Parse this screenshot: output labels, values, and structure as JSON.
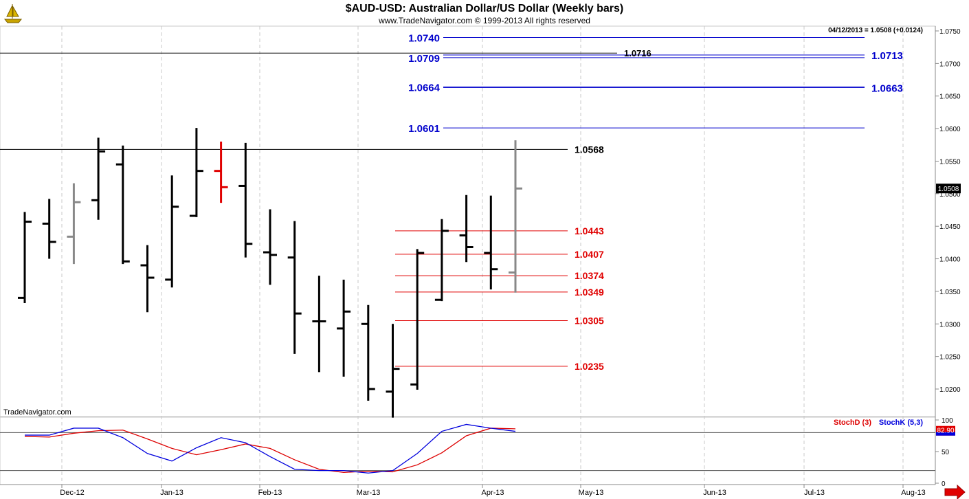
{
  "header": {
    "title": "$AUD-USD:  Australian Dollar/US Dollar  (Weekly bars)",
    "subtitle": "www.TradeNavigator.com © 1999-2013 All rights reserved",
    "quote": "04/12/2013 = 1.0508 (+0.0124)",
    "watermark": "TradeNavigator.com",
    "logo_icon": "trade-navigator-ship-logo"
  },
  "colors": {
    "up_bar": "#000000",
    "down_bar": "#000000",
    "highlight_bar": "#e00000",
    "current_bar": "#888888",
    "target_lines": "#0000cc",
    "support_lines": "#e00000",
    "resistance_lines": "#000000",
    "stoch_k": "#0000dd",
    "stoch_d": "#dd0000"
  },
  "chart_data": [
    {
      "type": "ohlc",
      "title": "$AUD-USD:  Australian Dollar/US Dollar  (Weekly bars)",
      "ylim": [
        1.0155,
        1.0755
      ],
      "y_ticks": [
        "1.0750",
        "1.0700",
        "1.0650",
        "1.0600",
        "1.0550",
        "1.0500",
        "1.0450",
        "1.0400",
        "1.0350",
        "1.0300",
        "1.0250",
        "1.0200"
      ],
      "x_ticks": [
        "Dec-12",
        "Jan-13",
        "Feb-13",
        "Mar-13",
        "Apr-13",
        "May-13",
        "Jun-13",
        "Jul-13",
        "Aug-13"
      ],
      "last_price_label": "1.0508",
      "bars": [
        {
          "o": 1.034,
          "h": 1.0472,
          "l": 1.0332,
          "c": 1.0457,
          "style": "normal"
        },
        {
          "o": 1.0454,
          "h": 1.0492,
          "l": 1.04,
          "c": 1.0426,
          "style": "normal"
        },
        {
          "o": 1.0434,
          "h": 1.0516,
          "l": 1.0392,
          "c": 1.0487,
          "style": "gray"
        },
        {
          "o": 1.049,
          "h": 1.0586,
          "l": 1.046,
          "c": 1.0565,
          "style": "normal"
        },
        {
          "o": 1.0545,
          "h": 1.0574,
          "l": 1.0392,
          "c": 1.0396,
          "style": "normal"
        },
        {
          "o": 1.039,
          "h": 1.0421,
          "l": 1.0318,
          "c": 1.0371,
          "style": "normal"
        },
        {
          "o": 1.0368,
          "h": 1.0528,
          "l": 1.0356,
          "c": 1.048,
          "style": "normal"
        },
        {
          "o": 1.0466,
          "h": 1.0601,
          "l": 1.0464,
          "c": 1.0535,
          "style": "normal"
        },
        {
          "o": 1.0535,
          "h": 1.058,
          "l": 1.0486,
          "c": 1.051,
          "style": "red"
        },
        {
          "o": 1.0512,
          "h": 1.0578,
          "l": 1.0402,
          "c": 1.0423,
          "style": "normal"
        },
        {
          "o": 1.041,
          "h": 1.0476,
          "l": 1.036,
          "c": 1.0406,
          "style": "normal"
        },
        {
          "o": 1.0402,
          "h": 1.0458,
          "l": 1.0254,
          "c": 1.0316,
          "style": "normal"
        },
        {
          "o": 1.0304,
          "h": 1.0374,
          "l": 1.0226,
          "c": 1.0304,
          "style": "normal"
        },
        {
          "o": 1.0293,
          "h": 1.0368,
          "l": 1.0219,
          "c": 1.0319,
          "style": "normal"
        },
        {
          "o": 1.03,
          "h": 1.0329,
          "l": 1.0182,
          "c": 1.02,
          "style": "normal"
        },
        {
          "o": 1.0196,
          "h": 1.03,
          "l": 1.0156,
          "c": 1.0231,
          "style": "normal"
        },
        {
          "o": 1.0207,
          "h": 1.0415,
          "l": 1.0199,
          "c": 1.0409,
          "style": "normal"
        },
        {
          "o": 1.0337,
          "h": 1.0461,
          "l": 1.0335,
          "c": 1.0443,
          "style": "normal"
        },
        {
          "o": 1.0436,
          "h": 1.0498,
          "l": 1.0395,
          "c": 1.0418,
          "style": "normal"
        },
        {
          "o": 1.0409,
          "h": 1.0497,
          "l": 1.0353,
          "c": 1.0384,
          "style": "normal"
        },
        {
          "o": 1.0379,
          "h": 1.0582,
          "l": 1.0348,
          "c": 1.0508,
          "style": "gray"
        }
      ],
      "levels": [
        {
          "value": 1.074,
          "label": "1.0740",
          "color": "blue",
          "side": "left"
        },
        {
          "value": 1.0713,
          "label": "1.0713",
          "color": "blue",
          "side": "right"
        },
        {
          "value": 1.0709,
          "label": "1.0709",
          "color": "blue",
          "side": "left"
        },
        {
          "value": 1.0716,
          "label": "1.0716",
          "color": "black",
          "side": "mid"
        },
        {
          "value": 1.0664,
          "label": "1.0664",
          "color": "blue",
          "side": "left"
        },
        {
          "value": 1.0663,
          "label": "1.0663",
          "color": "blue",
          "side": "right"
        },
        {
          "value": 1.0601,
          "label": "1.0601",
          "color": "blue",
          "side": "left"
        },
        {
          "value": 1.0568,
          "label": "1.0568",
          "color": "black",
          "side": "right"
        },
        {
          "value": 1.0443,
          "label": "1.0443",
          "color": "red",
          "side": "right"
        },
        {
          "value": 1.0407,
          "label": "1.0407",
          "color": "red",
          "side": "right"
        },
        {
          "value": 1.0374,
          "label": "1.0374",
          "color": "red",
          "side": "right"
        },
        {
          "value": 1.0349,
          "label": "1.0349",
          "color": "red",
          "side": "right"
        },
        {
          "value": 1.0305,
          "label": "1.0305",
          "color": "red",
          "side": "right"
        },
        {
          "value": 1.0235,
          "label": "1.0235",
          "color": "red",
          "side": "right"
        }
      ]
    },
    {
      "type": "line",
      "title": "Stochastic",
      "ylim": [
        0,
        100
      ],
      "y_ticks": [
        "100",
        "50",
        "0"
      ],
      "reference_levels": [
        80,
        20
      ],
      "value_label": "82.90",
      "series": [
        {
          "name": "StochD (3)",
          "values": [
            74,
            73,
            79,
            83,
            84,
            70,
            55,
            45,
            53,
            62,
            55,
            37,
            22,
            17,
            19,
            18,
            29,
            48,
            75,
            87,
            86
          ]
        },
        {
          "name": "StochK (5,3)",
          "values": [
            76,
            76,
            87,
            87,
            72,
            47,
            35,
            56,
            72,
            64,
            42,
            22,
            20,
            20,
            16,
            20,
            47,
            82,
            93,
            87,
            82
          ]
        }
      ]
    }
  ]
}
